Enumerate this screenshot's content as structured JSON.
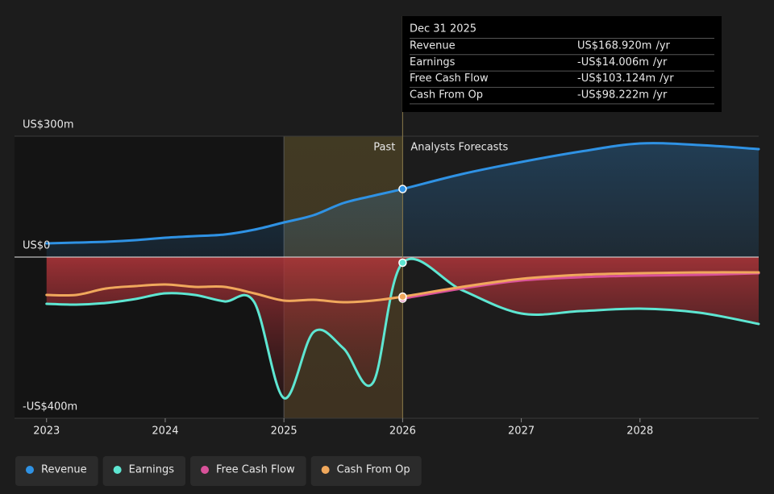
{
  "chart_data": {
    "type": "line",
    "x": [
      2023,
      2023.25,
      2023.5,
      2023.75,
      2024,
      2024.25,
      2024.5,
      2024.75,
      2025,
      2025.25,
      2025.5,
      2025.75,
      2026,
      2026.5,
      2027,
      2027.5,
      2028,
      2028.5,
      2029
    ],
    "xlim": [
      2022.73,
      2029.0
    ],
    "xticks": [
      2023,
      2024,
      2025,
      2026,
      2027,
      2028
    ],
    "ylim": [
      -400,
      300
    ],
    "yticks": [
      {
        "value": 300,
        "label": "US$300m"
      },
      {
        "value": 0,
        "label": "US$0"
      },
      {
        "value": -400,
        "label": "-US$400m"
      }
    ],
    "highlight_start": 2025,
    "forecast_start": 2026,
    "past_label": "Past",
    "forecast_label": "Analysts Forecasts",
    "series": [
      {
        "name": "Revenue",
        "color": "#2f92e4",
        "area": true,
        "values": [
          34,
          36,
          38,
          42,
          48,
          52,
          56,
          68,
          86,
          104,
          134,
          152,
          168.92,
          206,
          236,
          262,
          282,
          278,
          268
        ]
      },
      {
        "name": "Earnings",
        "color": "#5ee6d2",
        "area": true,
        "values": [
          -116,
          -118,
          -114,
          -104,
          -90,
          -94,
          -110,
          -112,
          -350,
          -186,
          -226,
          -312,
          -14.006,
          -82,
          -140,
          -134,
          -128,
          -138,
          -166
        ]
      },
      {
        "name": "Free Cash Flow",
        "color": "#d9529a",
        "values": [
          null,
          null,
          null,
          null,
          null,
          null,
          null,
          null,
          null,
          null,
          null,
          null,
          -103.124,
          -78,
          -58,
          -50,
          -46,
          -44,
          -40
        ]
      },
      {
        "name": "Cash From Op",
        "color": "#f0a85c",
        "values": [
          -94,
          -94,
          -78,
          -72,
          -68,
          -74,
          -74,
          -90,
          -108,
          -106,
          -112,
          -108,
          -98.222,
          -74,
          -54,
          -44,
          -40,
          -38,
          -38
        ]
      }
    ],
    "tooltip": {
      "date": "Dec 31 2025",
      "rows": [
        {
          "name": "Revenue",
          "value": "US$168.920m",
          "unit": "/yr",
          "color": "#2f92e4"
        },
        {
          "name": "Earnings",
          "value": "-US$14.006m",
          "unit": "/yr",
          "color": "#e5484d"
        },
        {
          "name": "Free Cash Flow",
          "value": "-US$103.124m",
          "unit": "/yr",
          "color": "#e5484d"
        },
        {
          "name": "Cash From Op",
          "value": "-US$98.222m",
          "unit": "/yr",
          "color": "#e5484d"
        }
      ]
    }
  }
}
